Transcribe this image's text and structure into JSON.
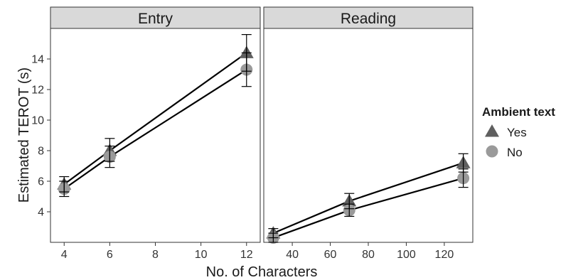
{
  "chart_data": {
    "type": "line",
    "xlabel": "No. of Characters",
    "ylabel": "Estimated TEROT (s)",
    "ylim": [
      2.0,
      16.0
    ],
    "yticks": [
      4,
      6,
      8,
      10,
      12,
      14
    ],
    "legend": {
      "title": "Ambient text",
      "placement": "right",
      "entries": [
        {
          "name": "Yes",
          "shape": "triangle",
          "color": "#5f5f5f"
        },
        {
          "name": "No",
          "shape": "circle",
          "color": "#9a9a9a"
        }
      ]
    },
    "grid": false,
    "panels": [
      {
        "strip": "Entry",
        "xlim": [
          3.4,
          12.6
        ],
        "xticks": [
          4,
          6,
          8,
          10,
          12
        ],
        "series": [
          {
            "name": "Yes",
            "x": [
              4,
              6,
              12
            ],
            "y": [
              5.8,
              8.0,
              14.4
            ],
            "err_low": [
              5.3,
              7.3,
              13.2
            ],
            "err_high": [
              6.3,
              8.8,
              15.6
            ]
          },
          {
            "name": "No",
            "x": [
              4,
              6,
              12
            ],
            "y": [
              5.5,
              7.6,
              13.3
            ],
            "err_low": [
              5.0,
              6.9,
              12.2
            ],
            "err_high": [
              6.0,
              8.3,
              14.4
            ]
          }
        ]
      },
      {
        "strip": "Reading",
        "xlim": [
          25,
          135
        ],
        "xticks": [
          40,
          60,
          80,
          100,
          120
        ],
        "series": [
          {
            "name": "Yes",
            "x": [
              30,
              70,
              130
            ],
            "y": [
              2.6,
              4.7,
              7.2
            ],
            "err_low": [
              2.3,
              4.2,
              6.6
            ],
            "err_high": [
              2.9,
              5.2,
              7.8
            ]
          },
          {
            "name": "No",
            "x": [
              30,
              70,
              130
            ],
            "y": [
              2.3,
              4.1,
              6.2
            ],
            "err_low": [
              2.0,
              3.7,
              5.6
            ],
            "err_high": [
              2.6,
              4.5,
              6.8
            ]
          }
        ]
      }
    ]
  }
}
